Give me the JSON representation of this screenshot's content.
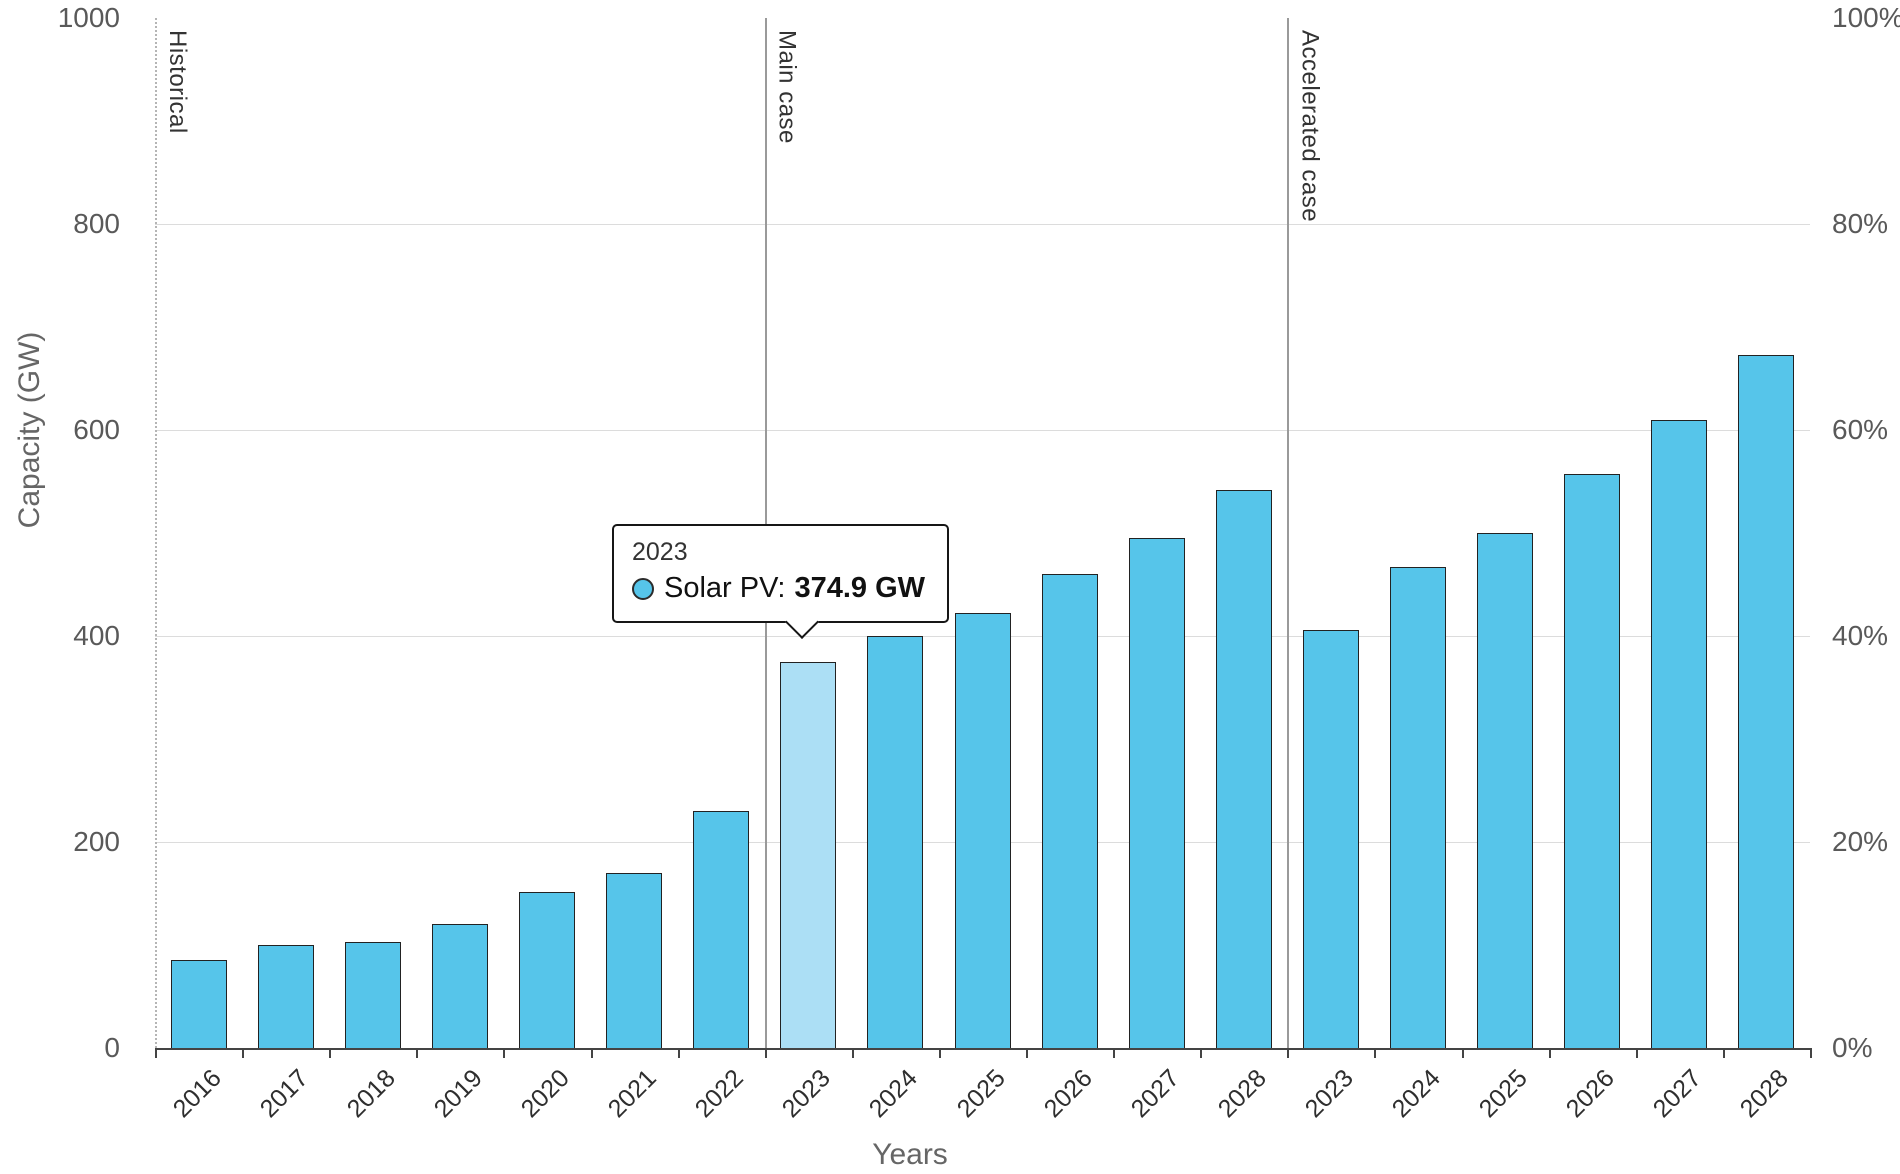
{
  "chart_data": {
    "type": "bar",
    "xlabel": "Years",
    "ylabel": "Capacity (GW)",
    "ylim": [
      0,
      1000
    ],
    "y_ticks": [
      0,
      200,
      400,
      600,
      800,
      1000
    ],
    "y_tick_labels_left": [
      "0",
      "200",
      "400",
      "600",
      "800",
      "1000"
    ],
    "y_tick_labels_right": [
      "0%",
      "20%",
      "40%",
      "60%",
      "80%",
      "100%"
    ],
    "grid": true,
    "legend_position": "none",
    "series_name": "Solar PV",
    "bar_color": "#56C5EA",
    "highlight_color": "#ACDFF5",
    "bar_border_color": "#222222",
    "sections": [
      {
        "label": "Historical",
        "start_index": 0,
        "line": "dotted"
      },
      {
        "label": "Main case",
        "start_index": 7,
        "line": "solid"
      },
      {
        "label": "Accelerated case",
        "start_index": 13,
        "line": "solid"
      }
    ],
    "bars": [
      {
        "year": "2016",
        "value": 85
      },
      {
        "year": "2017",
        "value": 100
      },
      {
        "year": "2018",
        "value": 103
      },
      {
        "year": "2019",
        "value": 120
      },
      {
        "year": "2020",
        "value": 151
      },
      {
        "year": "2021",
        "value": 170
      },
      {
        "year": "2022",
        "value": 230
      },
      {
        "year": "2023",
        "value": 374.9,
        "highlighted": true
      },
      {
        "year": "2024",
        "value": 400
      },
      {
        "year": "2025",
        "value": 422
      },
      {
        "year": "2026",
        "value": 460
      },
      {
        "year": "2027",
        "value": 495
      },
      {
        "year": "2028",
        "value": 542
      },
      {
        "year": "2023",
        "value": 406
      },
      {
        "year": "2024",
        "value": 467
      },
      {
        "year": "2025",
        "value": 500
      },
      {
        "year": "2026",
        "value": 557
      },
      {
        "year": "2027",
        "value": 610
      },
      {
        "year": "2028",
        "value": 673
      }
    ]
  },
  "tooltip": {
    "year": "2023",
    "series_label": "Solar PV:",
    "value": "374.9 GW",
    "marker_color": "#56C5EA"
  }
}
